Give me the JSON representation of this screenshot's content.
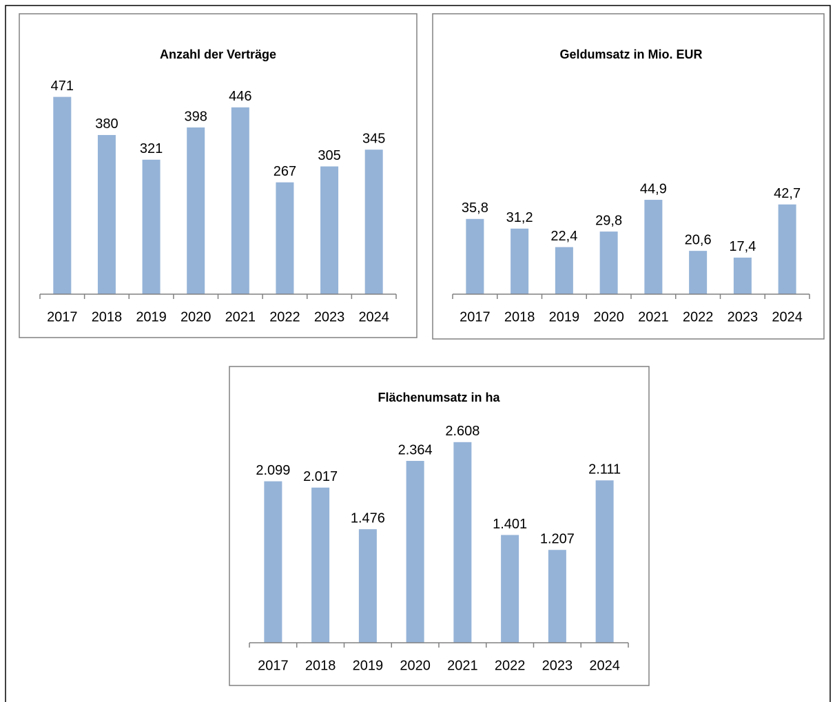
{
  "chart_data": [
    {
      "type": "bar",
      "title": "Anzahl der Verträge",
      "categories": [
        "2017",
        "2018",
        "2019",
        "2020",
        "2021",
        "2022",
        "2023",
        "2024"
      ],
      "values": [
        471,
        380,
        321,
        398,
        446,
        267,
        305,
        345
      ],
      "color": "#95b3d7",
      "ylim": [
        0,
        500
      ]
    },
    {
      "type": "bar",
      "title": "Geldumsatz in Mio. EUR",
      "categories": [
        "2017",
        "2018",
        "2019",
        "2020",
        "2021",
        "2022",
        "2023",
        "2024"
      ],
      "values": [
        35.8,
        31.2,
        22.4,
        29.8,
        44.9,
        20.6,
        17.4,
        42.7
      ],
      "value_labels": [
        "35,8",
        "31,2",
        "22,4",
        "29,8",
        "44,9",
        "20,6",
        "17,4",
        "42,7"
      ],
      "color": "#95b3d7",
      "ylim": [
        0,
        100
      ]
    },
    {
      "type": "bar",
      "title": "Flächenumsatz in ha",
      "categories": [
        "2017",
        "2018",
        "2019",
        "2020",
        "2021",
        "2022",
        "2023",
        "2024"
      ],
      "values": [
        2099,
        2017,
        1476,
        2364,
        2608,
        1401,
        1207,
        2111
      ],
      "value_labels": [
        "2.099",
        "2.017",
        "1.476",
        "2.364",
        "2.608",
        "1.401",
        "1.207",
        "2.111"
      ],
      "color": "#95b3d7",
      "ylim": [
        0,
        3000
      ]
    }
  ]
}
